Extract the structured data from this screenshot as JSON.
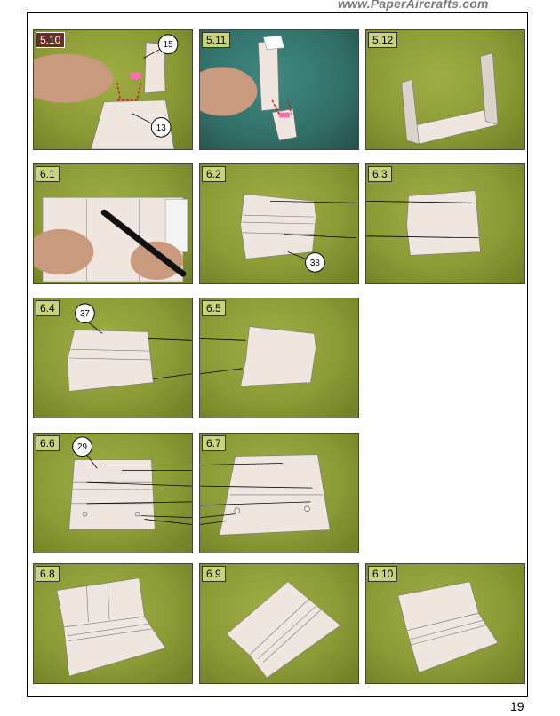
{
  "header": {
    "site_url": "www.PaperAircrafts.com"
  },
  "footer": {
    "page_number": "19"
  },
  "steps": [
    {
      "label": "5.10",
      "callouts": [
        "15",
        "13"
      ]
    },
    {
      "label": "5.11",
      "callouts": []
    },
    {
      "label": "5.12",
      "callouts": []
    },
    {
      "label": "6.1",
      "callouts": []
    },
    {
      "label": "6.2",
      "callouts": [
        "38"
      ]
    },
    {
      "label": "6.3",
      "callouts": []
    },
    {
      "label": "6.4",
      "callouts": [
        "37"
      ]
    },
    {
      "label": "6.5",
      "callouts": []
    },
    {
      "label": "6.6",
      "callouts": [
        "29"
      ]
    },
    {
      "label": "6.7",
      "callouts": []
    },
    {
      "label": "6.8",
      "callouts": []
    },
    {
      "label": "6.9",
      "callouts": []
    },
    {
      "label": "6.10",
      "callouts": []
    }
  ],
  "colors": {
    "background_green": "#8c9b36",
    "paper": "#efe6e0",
    "arrow_red": "#d0201a"
  }
}
